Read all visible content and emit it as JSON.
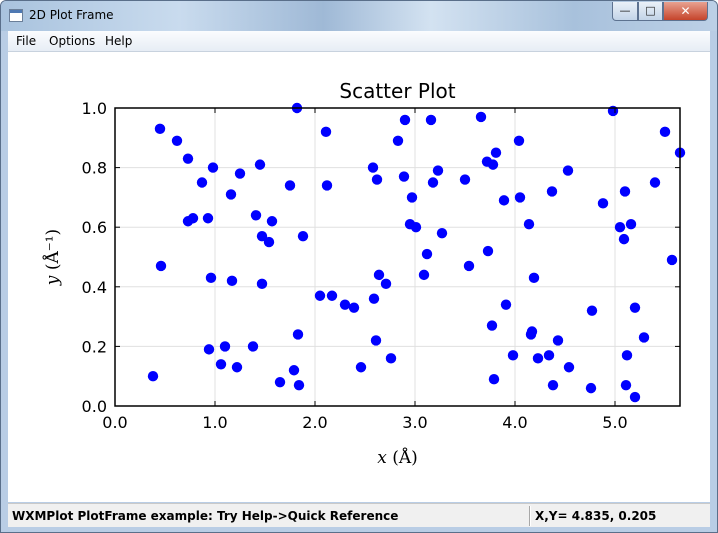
{
  "window": {
    "title": "2D Plot Frame",
    "minimize_label": "—",
    "maximize_label": "□",
    "close_label": "✕"
  },
  "menu": {
    "items": [
      {
        "label": "File"
      },
      {
        "label": "Options"
      },
      {
        "label": "Help"
      }
    ]
  },
  "status": {
    "message": "WXMPlot PlotFrame example: Try Help->Quick Reference",
    "coords": "X,Y= 4.835, 0.205"
  },
  "colors": {
    "marker": "#0000ff",
    "grid": "#e0e0e0"
  },
  "chart_data": {
    "type": "scatter",
    "title": "Scatter Plot",
    "xlabel_var": "x",
    "xlabel_unit": "(Å)",
    "ylabel_var": "y",
    "ylabel_unit": "(Å⁻¹)",
    "xlim": [
      0.0,
      5.65
    ],
    "ylim": [
      0.0,
      1.0
    ],
    "xticks": [
      "0.0",
      "1.0",
      "2.0",
      "3.0",
      "4.0",
      "5.0"
    ],
    "yticks": [
      "0.0",
      "0.2",
      "0.4",
      "0.6",
      "0.8",
      "1.0"
    ],
    "grid": true,
    "x": [
      0.38,
      0.45,
      0.46,
      0.62,
      0.73,
      0.73,
      0.78,
      0.87,
      0.93,
      0.94,
      0.96,
      0.98,
      1.06,
      1.1,
      1.16,
      1.17,
      1.22,
      1.25,
      1.38,
      1.41,
      1.45,
      1.47,
      1.47,
      1.54,
      1.57,
      1.65,
      1.75,
      1.79,
      1.82,
      1.83,
      1.84,
      1.88,
      2.05,
      2.11,
      2.12,
      2.17,
      2.3,
      2.39,
      2.46,
      2.58,
      2.59,
      2.61,
      2.62,
      2.64,
      2.71,
      2.76,
      2.83,
      2.89,
      2.9,
      2.95,
      2.97,
      3.01,
      3.09,
      3.12,
      3.16,
      3.18,
      3.23,
      3.27,
      3.5,
      3.54,
      3.66,
      3.72,
      3.73,
      3.77,
      3.78,
      3.79,
      3.81,
      3.89,
      3.91,
      3.98,
      4.04,
      4.05,
      4.14,
      4.16,
      4.17,
      4.19,
      4.23,
      4.34,
      4.37,
      4.38,
      4.43,
      4.53,
      4.54,
      4.76,
      4.77,
      4.88,
      4.98,
      5.05,
      5.09,
      5.1,
      5.11,
      5.12,
      5.16,
      5.2,
      5.2,
      5.29,
      5.4,
      5.5,
      5.57,
      5.65
    ],
    "y": [
      0.1,
      0.93,
      0.47,
      0.89,
      0.83,
      0.62,
      0.63,
      0.75,
      0.63,
      0.19,
      0.43,
      0.8,
      0.14,
      0.2,
      0.71,
      0.42,
      0.13,
      0.78,
      0.2,
      0.64,
      0.81,
      0.41,
      0.57,
      0.55,
      0.62,
      0.08,
      0.74,
      0.12,
      1.0,
      0.24,
      0.07,
      0.57,
      0.37,
      0.92,
      0.74,
      0.37,
      0.34,
      0.33,
      0.13,
      0.8,
      0.36,
      0.22,
      0.76,
      0.44,
      0.41,
      0.16,
      0.89,
      0.77,
      0.96,
      0.61,
      0.7,
      0.6,
      0.44,
      0.51,
      0.96,
      0.75,
      0.79,
      0.58,
      0.76,
      0.47,
      0.97,
      0.82,
      0.52,
      0.27,
      0.81,
      0.09,
      0.85,
      0.69,
      0.34,
      0.17,
      0.89,
      0.7,
      0.61,
      0.24,
      0.25,
      0.43,
      0.16,
      0.17,
      0.72,
      0.07,
      0.22,
      0.79,
      0.13,
      0.06,
      0.32,
      0.68,
      0.99,
      0.6,
      0.56,
      0.72,
      0.07,
      0.17,
      0.61,
      0.03,
      0.33,
      0.23,
      0.75,
      0.92,
      0.49,
      0.85
    ]
  }
}
